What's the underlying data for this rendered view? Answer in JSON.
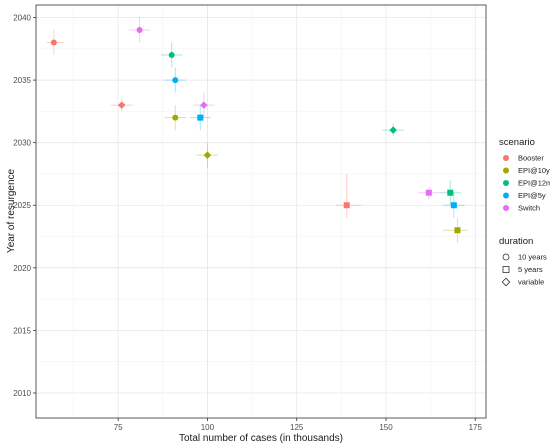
{
  "chart_data": {
    "type": "scatter",
    "title": "",
    "xlabel": "Total number of cases (in thousands)",
    "ylabel": "Year of resurgence",
    "xlim": [
      52,
      178
    ],
    "ylim": [
      2008,
      2041
    ],
    "x_ticks": [
      75,
      100,
      125,
      150,
      175
    ],
    "y_ticks": [
      2010,
      2015,
      2020,
      2025,
      2030,
      2035,
      2040
    ],
    "grid": true,
    "legend_position": "right",
    "legends": {
      "scenario": {
        "title": "scenario",
        "items": [
          {
            "name": "Booster",
            "color": "#F8766D"
          },
          {
            "name": "EPI@10y",
            "color": "#A3A500"
          },
          {
            "name": "EPI@12m",
            "color": "#00BF7D"
          },
          {
            "name": "EPI@5y",
            "color": "#00B0F6"
          },
          {
            "name": "Switch",
            "color": "#E76BF3"
          }
        ]
      },
      "duration": {
        "title": "duration",
        "items": [
          {
            "name": "10 years",
            "shape": "circle"
          },
          {
            "name": "5 years",
            "shape": "square"
          },
          {
            "name": "variable",
            "shape": "diamond"
          }
        ]
      }
    },
    "points": [
      {
        "scenario": "Booster",
        "duration": "10 years",
        "x": 57,
        "y": 2038,
        "xerr": [
          55,
          60
        ],
        "yerr": [
          2037,
          2039
        ]
      },
      {
        "scenario": "Booster",
        "duration": "variable",
        "x": 76,
        "y": 2033,
        "xerr": [
          73,
          79
        ],
        "yerr": [
          2032.5,
          2033.5
        ]
      },
      {
        "scenario": "Booster",
        "duration": "5 years",
        "x": 139,
        "y": 2025,
        "xerr": [
          136,
          143
        ],
        "yerr": [
          2024,
          2027.5
        ]
      },
      {
        "scenario": "EPI@10y",
        "duration": "10 years",
        "x": 91,
        "y": 2032,
        "xerr": [
          88,
          94
        ],
        "yerr": [
          2031,
          2033
        ]
      },
      {
        "scenario": "EPI@10y",
        "duration": "variable",
        "x": 100,
        "y": 2029,
        "xerr": [
          97,
          103
        ],
        "yerr": [
          2028,
          2030
        ]
      },
      {
        "scenario": "EPI@10y",
        "duration": "5 years",
        "x": 170,
        "y": 2023,
        "xerr": [
          166,
          173
        ],
        "yerr": [
          2022,
          2024
        ]
      },
      {
        "scenario": "EPI@12m",
        "duration": "10 years",
        "x": 90,
        "y": 2037,
        "xerr": [
          87,
          93
        ],
        "yerr": [
          2036,
          2038
        ]
      },
      {
        "scenario": "EPI@12m",
        "duration": "variable",
        "x": 152,
        "y": 2031,
        "xerr": [
          149,
          155
        ],
        "yerr": [
          2030.5,
          2031.5
        ]
      },
      {
        "scenario": "EPI@12m",
        "duration": "5 years",
        "x": 168,
        "y": 2026,
        "xerr": [
          165,
          171
        ],
        "yerr": [
          2025,
          2027
        ]
      },
      {
        "scenario": "EPI@5y",
        "duration": "10 years",
        "x": 91,
        "y": 2035,
        "xerr": [
          88,
          94
        ],
        "yerr": [
          2034,
          2036
        ]
      },
      {
        "scenario": "EPI@5y",
        "duration": "5 years",
        "x": 98,
        "y": 2032,
        "xerr": [
          95,
          101
        ],
        "yerr": [
          2031,
          2033
        ]
      },
      {
        "scenario": "EPI@5y",
        "duration": "5 years",
        "x": 169,
        "y": 2025,
        "xerr": [
          166,
          172
        ],
        "yerr": [
          2024,
          2026
        ]
      },
      {
        "scenario": "Switch",
        "duration": "10 years",
        "x": 81,
        "y": 2039,
        "xerr": [
          78,
          84
        ],
        "yerr": [
          2038,
          2040
        ]
      },
      {
        "scenario": "Switch",
        "duration": "variable",
        "x": 99,
        "y": 2033,
        "xerr": [
          96,
          102
        ],
        "yerr": [
          2032,
          2034
        ]
      },
      {
        "scenario": "Switch",
        "duration": "5 years",
        "x": 162,
        "y": 2026,
        "xerr": [
          159,
          165
        ],
        "yerr": [
          2025.5,
          2026.5
        ]
      }
    ]
  }
}
